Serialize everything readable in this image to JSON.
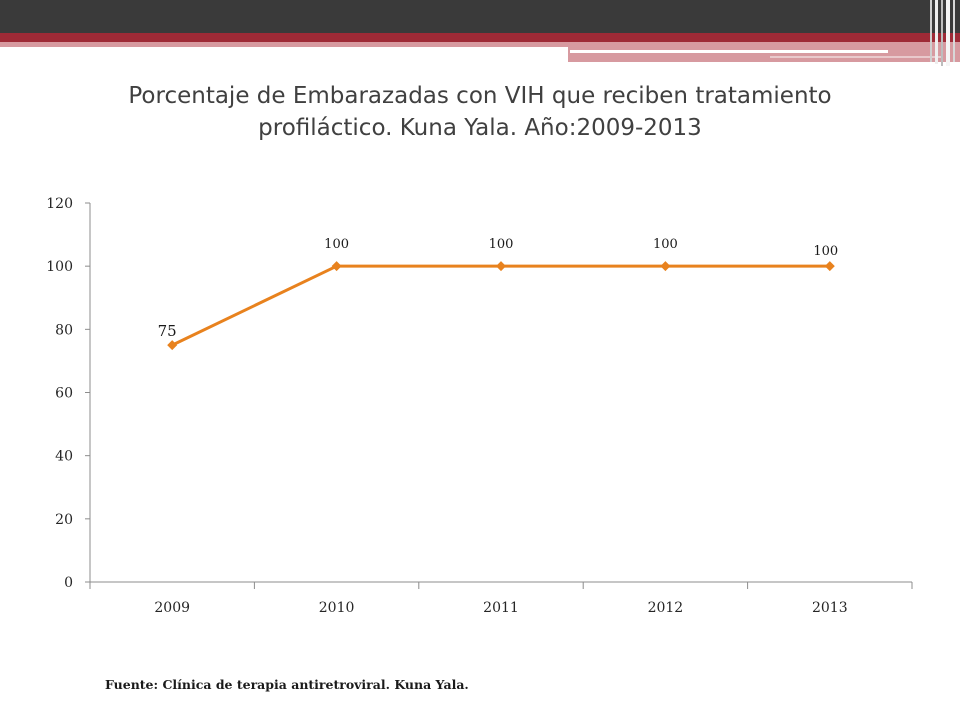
{
  "slide": {
    "accent_dark": "#3a3a3a",
    "accent_red": "#9e2a36",
    "accent_pink": "#d79aa0"
  },
  "chart_data": {
    "type": "line",
    "title": "Porcentaje de Embarazadas con VIH que reciben tratamiento profiláctico. Kuna Yala. Año:2009-2013",
    "categories": [
      "2009",
      "2010",
      "2011",
      "2012",
      "2013"
    ],
    "series": [
      {
        "values": [
          75,
          100,
          100,
          100,
          100
        ],
        "color": "#e8821e",
        "marker": "diamond"
      }
    ],
    "data_labels": [
      "75",
      "100",
      "100",
      "100",
      "100"
    ],
    "ylim": [
      0,
      120
    ],
    "yticks": [
      "0",
      "20",
      "40",
      "60",
      "80",
      "100",
      "120"
    ],
    "xlabel": "",
    "ylabel": "",
    "grid": false,
    "legend": "none"
  },
  "footer": {
    "source": "Fuente: Clínica de terapia antiretroviral. Kuna Yala."
  }
}
